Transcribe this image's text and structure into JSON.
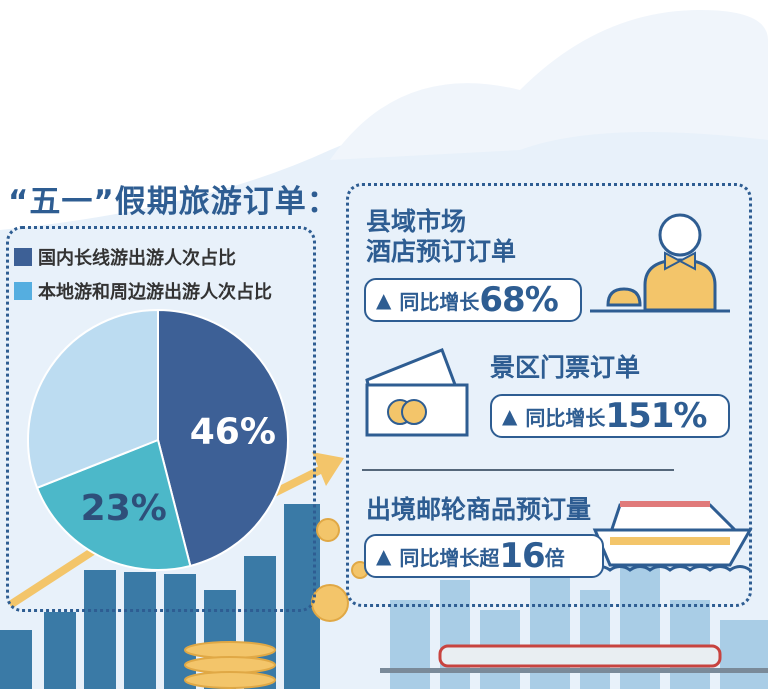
{
  "title": "“五一”假期旅游订单：",
  "colors": {
    "dark_blue": "#3d6096",
    "teal": "#4cb8c9",
    "light_blue": "#bcdcf1",
    "title": "#2e5d92",
    "accent": "#f3c56a"
  },
  "chart_data": {
    "type": "pie",
    "legend": [
      "国内长线游出游人次占比",
      "本地游和周边游出游人次占比"
    ],
    "legend_placement": "top",
    "slices": [
      {
        "name": "国内长线游出游人次占比",
        "value": 46,
        "label": "46%",
        "color": "#3d6096"
      },
      {
        "name": "本地游和周边游出游人次占比",
        "value": 23,
        "label": "23%",
        "color": "#4cb8c9"
      },
      {
        "value": 31,
        "label": "",
        "color": "#bcdcf1"
      }
    ]
  },
  "stats": [
    {
      "heading_1": "县域市场",
      "heading_2": "酒店预订订单",
      "icon": "hotel-receptionist-icon",
      "label": "同比增长",
      "value": "68%"
    },
    {
      "heading_1": "景区门票订单",
      "icon": "ticket-icon",
      "label": "同比增长",
      "value": "151%"
    },
    {
      "heading_1": "出境邮轮商品预订量",
      "icon": "cruise-ship-icon",
      "label": "同比增长超",
      "value": "16",
      "suffix": "倍"
    }
  ]
}
